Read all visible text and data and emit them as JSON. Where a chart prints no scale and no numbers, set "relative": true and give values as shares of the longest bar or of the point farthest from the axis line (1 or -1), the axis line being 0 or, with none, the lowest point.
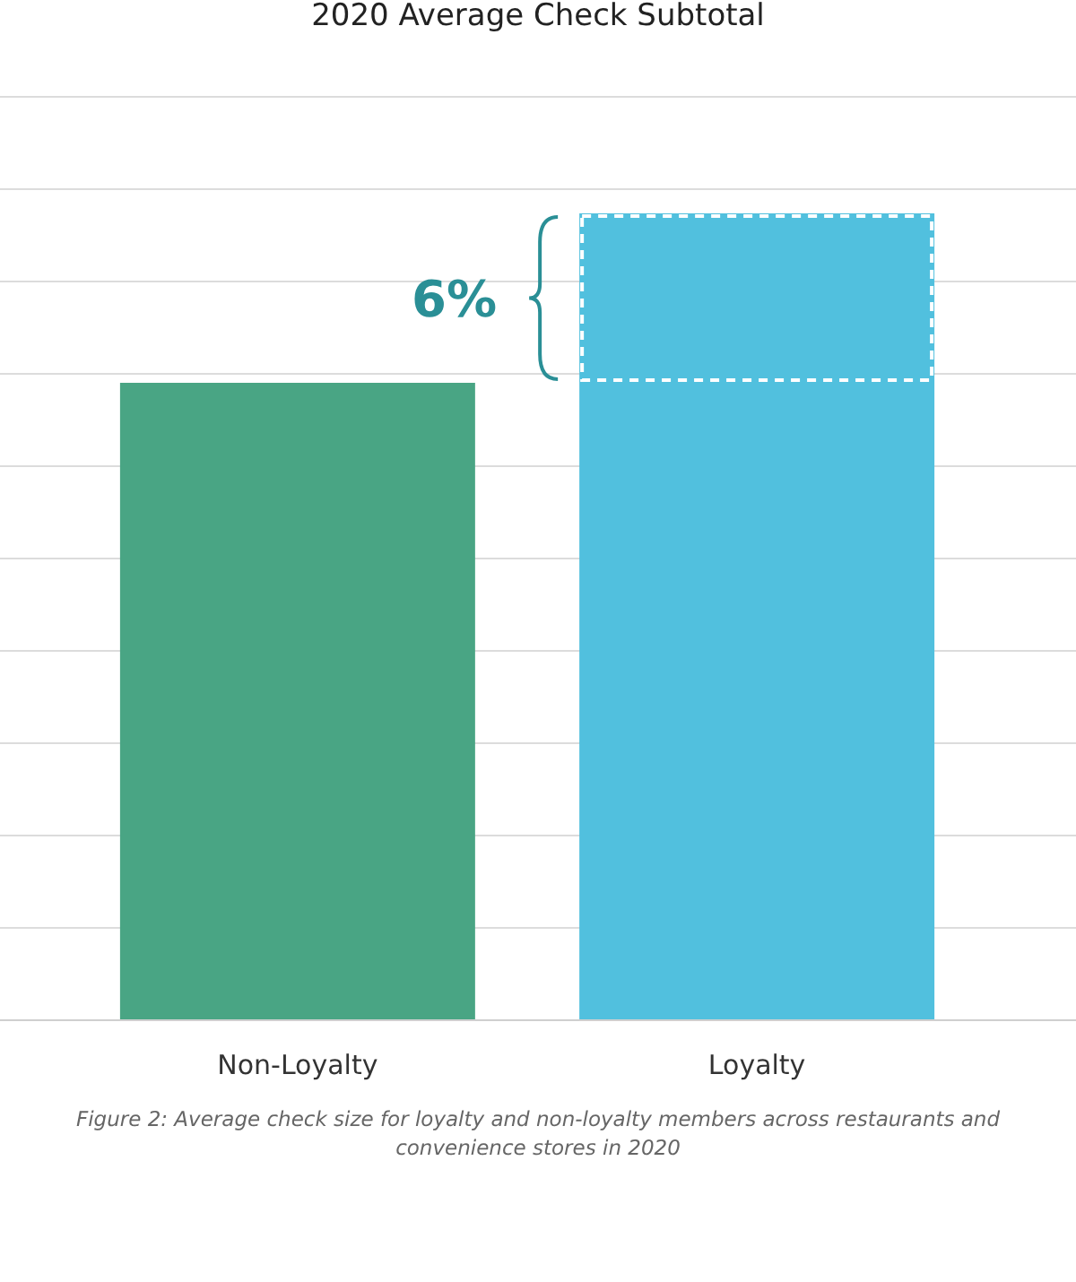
{
  "chart_data": {
    "type": "bar",
    "title": "2020 Average Check Subtotal",
    "categories": [
      "Non-Loyalty",
      "Loyalty"
    ],
    "values": [
      0.79,
      1
    ],
    "colors": [
      "#49a584",
      "#51c0de"
    ],
    "relative": true,
    "grid": "y",
    "annotations": [
      "6%",
      "Figure 2: Average check size for loyalty and non-loyalty members across restaurants and convenience stores in 2020"
    ]
  }
}
